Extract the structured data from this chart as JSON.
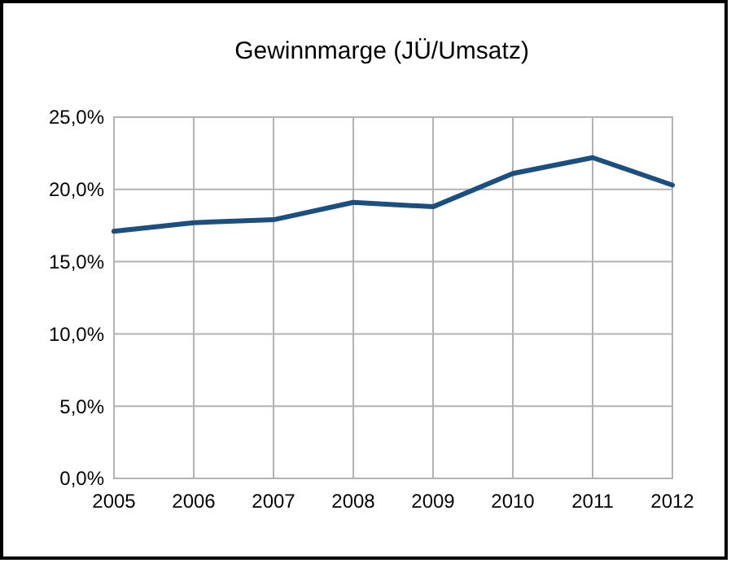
{
  "chart_data": {
    "type": "line",
    "title": "Gewinnmarge (JÜ/Umsatz)",
    "categories": [
      "2005",
      "2006",
      "2007",
      "2008",
      "2009",
      "2010",
      "2011",
      "2012"
    ],
    "series": [
      {
        "color": "#1b4f7f",
        "values": [
          17.1,
          17.7,
          17.9,
          19.1,
          18.8,
          21.1,
          22.2,
          20.3
        ]
      }
    ],
    "ylim": [
      0,
      25
    ],
    "yticks": [
      {
        "value": 0,
        "label": "0,0%"
      },
      {
        "value": 5,
        "label": "5,0%"
      },
      {
        "value": 10,
        "label": "10,0%"
      },
      {
        "value": 15,
        "label": "15,0%"
      },
      {
        "value": 20,
        "label": "20,0%"
      },
      {
        "value": 25,
        "label": "25,0%"
      }
    ],
    "grid": true,
    "marker": "none",
    "line_style": "solid"
  }
}
